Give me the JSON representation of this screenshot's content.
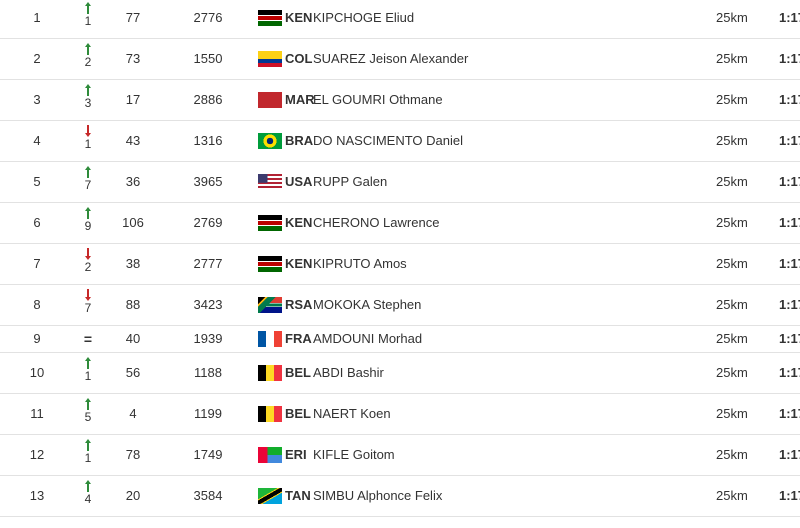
{
  "table": {
    "rows": [
      {
        "rank": "1",
        "trend": "up",
        "change": "1",
        "position": "77",
        "bib": "2776",
        "country": "KEN",
        "name": "KIPCHOGE Eliud",
        "distance": "25km",
        "time": "1:17"
      },
      {
        "rank": "2",
        "trend": "up",
        "change": "2",
        "position": "73",
        "bib": "1550",
        "country": "COL",
        "name": "SUAREZ Jeison Alexander",
        "distance": "25km",
        "time": "1:17"
      },
      {
        "rank": "3",
        "trend": "up",
        "change": "3",
        "position": "17",
        "bib": "2886",
        "country": "MAR",
        "name": "EL GOUMRI Othmane",
        "distance": "25km",
        "time": "1:17"
      },
      {
        "rank": "4",
        "trend": "down",
        "change": "1",
        "position": "43",
        "bib": "1316",
        "country": "BRA",
        "name": "DO NASCIMENTO Daniel",
        "distance": "25km",
        "time": "1:17"
      },
      {
        "rank": "5",
        "trend": "up",
        "change": "7",
        "position": "36",
        "bib": "3965",
        "country": "USA",
        "name": "RUPP Galen",
        "distance": "25km",
        "time": "1:17"
      },
      {
        "rank": "6",
        "trend": "up",
        "change": "9",
        "position": "106",
        "bib": "2769",
        "country": "KEN",
        "name": "CHERONO Lawrence",
        "distance": "25km",
        "time": "1:17"
      },
      {
        "rank": "7",
        "trend": "down",
        "change": "2",
        "position": "38",
        "bib": "2777",
        "country": "KEN",
        "name": "KIPRUTO Amos",
        "distance": "25km",
        "time": "1:17"
      },
      {
        "rank": "8",
        "trend": "down",
        "change": "7",
        "position": "88",
        "bib": "3423",
        "country": "RSA",
        "name": "MOKOKA Stephen",
        "distance": "25km",
        "time": "1:17"
      },
      {
        "rank": "9",
        "trend": "same",
        "change": "=",
        "position": "40",
        "bib": "1939",
        "country": "FRA",
        "name": "AMDOUNI Morhad",
        "distance": "25km",
        "time": "1:17"
      },
      {
        "rank": "10",
        "trend": "up",
        "change": "1",
        "position": "56",
        "bib": "1188",
        "country": "BEL",
        "name": "ABDI Bashir",
        "distance": "25km",
        "time": "1:17"
      },
      {
        "rank": "11",
        "trend": "up",
        "change": "5",
        "position": "4",
        "bib": "1199",
        "country": "BEL",
        "name": "NAERT Koen",
        "distance": "25km",
        "time": "1:17"
      },
      {
        "rank": "12",
        "trend": "up",
        "change": "1",
        "position": "78",
        "bib": "1749",
        "country": "ERI",
        "name": "KIFLE Goitom",
        "distance": "25km",
        "time": "1:17"
      },
      {
        "rank": "13",
        "trend": "up",
        "change": "4",
        "position": "20",
        "bib": "3584",
        "country": "TAN",
        "name": "SIMBU Alphonce Felix",
        "distance": "25km",
        "time": "1:17"
      }
    ]
  }
}
